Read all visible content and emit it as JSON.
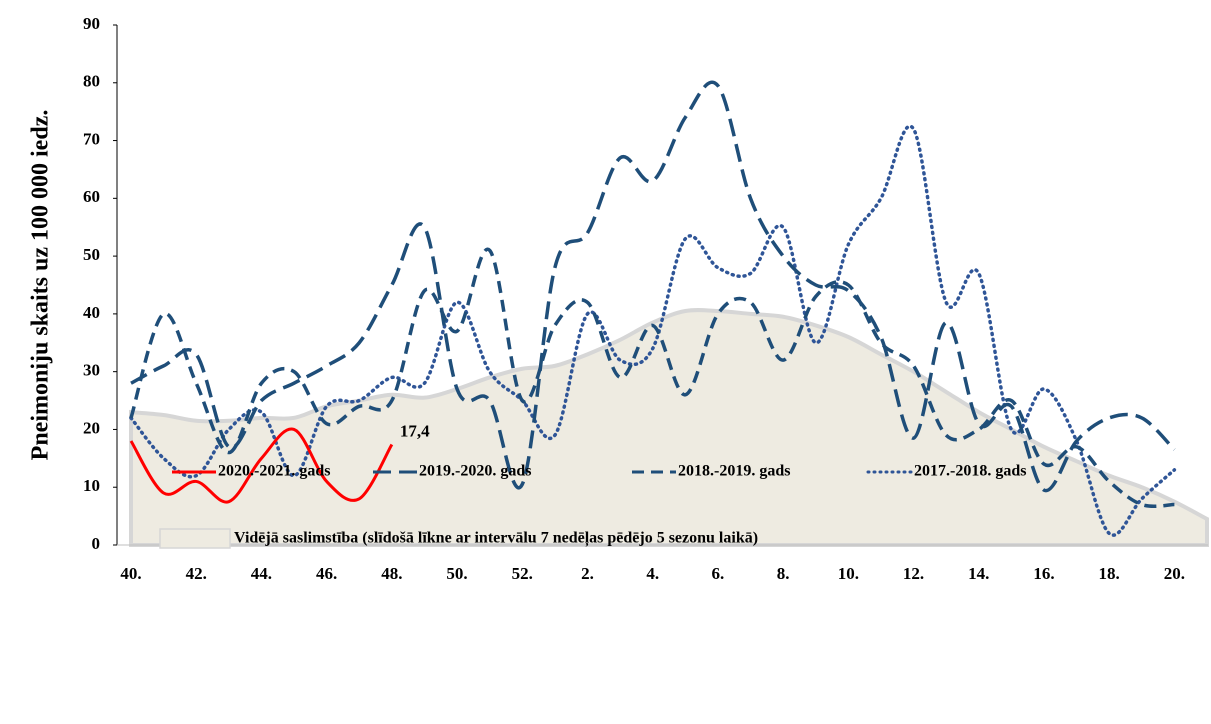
{
  "chart_data": {
    "type": "line",
    "y_label": "Pneimoniju skaits uz 100 000 iedz.",
    "categories": [
      "40.",
      null,
      "42.",
      null,
      "44.",
      null,
      "46.",
      null,
      "48.",
      null,
      "50.",
      null,
      "52.",
      null,
      "2.",
      null,
      "4.",
      null,
      "6.",
      null,
      "8.",
      null,
      "10.",
      null,
      "12.",
      null,
      "14.",
      null,
      "16.",
      null,
      "18.",
      null,
      "20.",
      null
    ],
    "ylim": [
      0,
      90
    ],
    "yticks": [
      0,
      10,
      20,
      30,
      40,
      50,
      60,
      70,
      80,
      90
    ],
    "grid": false,
    "series": [
      {
        "name": "Vidējā saslimstība (slīdošā līkne ar intervālu 7 nedēļas pēdējo 5 sezonu laikā)",
        "color": "#eeebe1",
        "style": "area",
        "values": [
          23,
          22.5,
          21.5,
          21.5,
          22,
          22,
          24,
          25,
          26,
          25.5,
          27,
          29,
          30.5,
          31,
          33,
          35.5,
          38.5,
          40.5,
          40.5,
          40,
          39.5,
          38,
          36,
          33,
          30,
          26.5,
          23,
          20,
          17,
          14.5,
          12,
          10,
          7.5,
          4.5
        ]
      },
      {
        "name": "2017.-2018. gads",
        "color": "#2f5597",
        "style": "dotted",
        "values": [
          22,
          15,
          12,
          20,
          23,
          12,
          24,
          25,
          29,
          28,
          42,
          30,
          25,
          19,
          40,
          32,
          34,
          53,
          48,
          47,
          55,
          35,
          52,
          60,
          72,
          42,
          47,
          20,
          27,
          18,
          2,
          8,
          13,
          null
        ]
      },
      {
        "name": "2018.-2019. gads",
        "color": "#1f4e79",
        "style": "dashed",
        "values": [
          22,
          40,
          28,
          16,
          28,
          30,
          21,
          24,
          25,
          44,
          37,
          51,
          25,
          38,
          42,
          29,
          38,
          26,
          40,
          42,
          32,
          43,
          45,
          35,
          31,
          19,
          20,
          25,
          14,
          17,
          11,
          7,
          7,
          null
        ]
      },
      {
        "name": "2019.-2020. gads",
        "color": "#1f4e79",
        "style": "long-dashed",
        "values": [
          28,
          31,
          33,
          17,
          25,
          28,
          31,
          35,
          45,
          55,
          27,
          25,
          10.5,
          48,
          54,
          67,
          63,
          74,
          79.5,
          60,
          50,
          45,
          44,
          36,
          18.5,
          38.5,
          21,
          24,
          9.5,
          18,
          22,
          22,
          16.5,
          null
        ]
      },
      {
        "name": "2020.-2021. gads",
        "color": "#ff0000",
        "style": "solid",
        "values": [
          18,
          9,
          11,
          7.5,
          15,
          20,
          11,
          8,
          17.4,
          null,
          null,
          null,
          null,
          null,
          null,
          null,
          null,
          null,
          null,
          null,
          null,
          null,
          null,
          null,
          null,
          null,
          null,
          null,
          null,
          null,
          null,
          null,
          null,
          null
        ],
        "value_labels": [
          null,
          null,
          null,
          null,
          null,
          null,
          null,
          null,
          "17,4",
          null,
          null,
          null,
          null,
          null,
          null,
          null,
          null,
          null,
          null,
          null,
          null,
          null,
          null,
          null,
          null,
          null,
          null,
          null,
          null,
          null,
          null,
          null,
          null,
          null
        ]
      }
    ]
  }
}
